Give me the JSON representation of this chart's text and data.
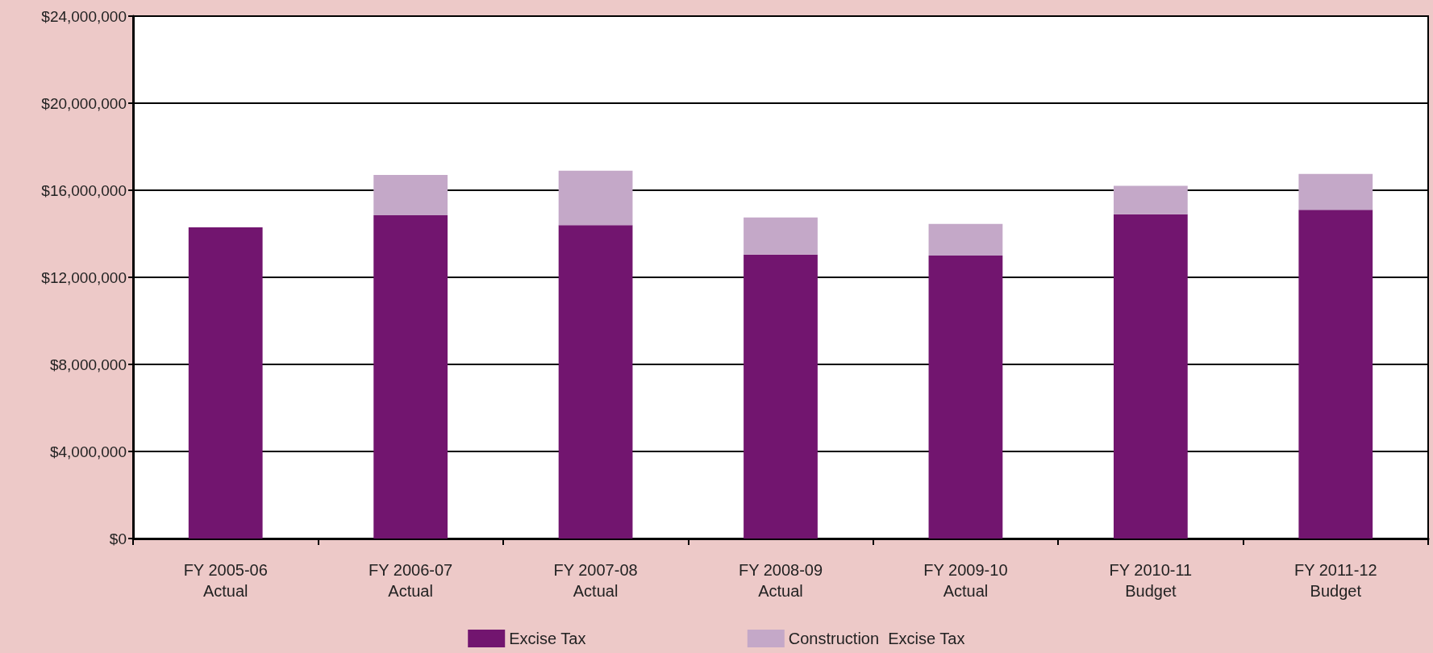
{
  "chart_data": {
    "type": "bar",
    "stacked": true,
    "categories": [
      "FY 2005-06\nActual",
      "FY 2006-07\nActual",
      "FY 2007-08\nActual",
      "FY 2008-09\nActual",
      "FY 2009-10\nActual",
      "FY 2010-11\nBudget",
      "FY 2011-12\nBudget"
    ],
    "series": [
      {
        "name": "Excise Tax",
        "color": "#72156f",
        "values": [
          14300000,
          14850000,
          14400000,
          13050000,
          13000000,
          14900000,
          15100000
        ]
      },
      {
        "name": "Construction  Excise Tax",
        "color": "#c4a8c8",
        "values": [
          null,
          1850000,
          2500000,
          1700000,
          1450000,
          1300000,
          1650000
        ]
      }
    ],
    "ylim": [
      0,
      24000000
    ],
    "yticks": [
      {
        "value": 0,
        "label": "$0"
      },
      {
        "value": 4000000,
        "label": "$4,000,000"
      },
      {
        "value": 8000000,
        "label": "$8,000,000"
      },
      {
        "value": 12000000,
        "label": "$12,000,000"
      },
      {
        "value": 16000000,
        "label": "$16,000,000"
      },
      {
        "value": 20000000,
        "label": "$20,000,000"
      },
      {
        "value": 24000000,
        "label": "$24,000,000"
      }
    ],
    "grid": "y",
    "legend": "bottom"
  }
}
